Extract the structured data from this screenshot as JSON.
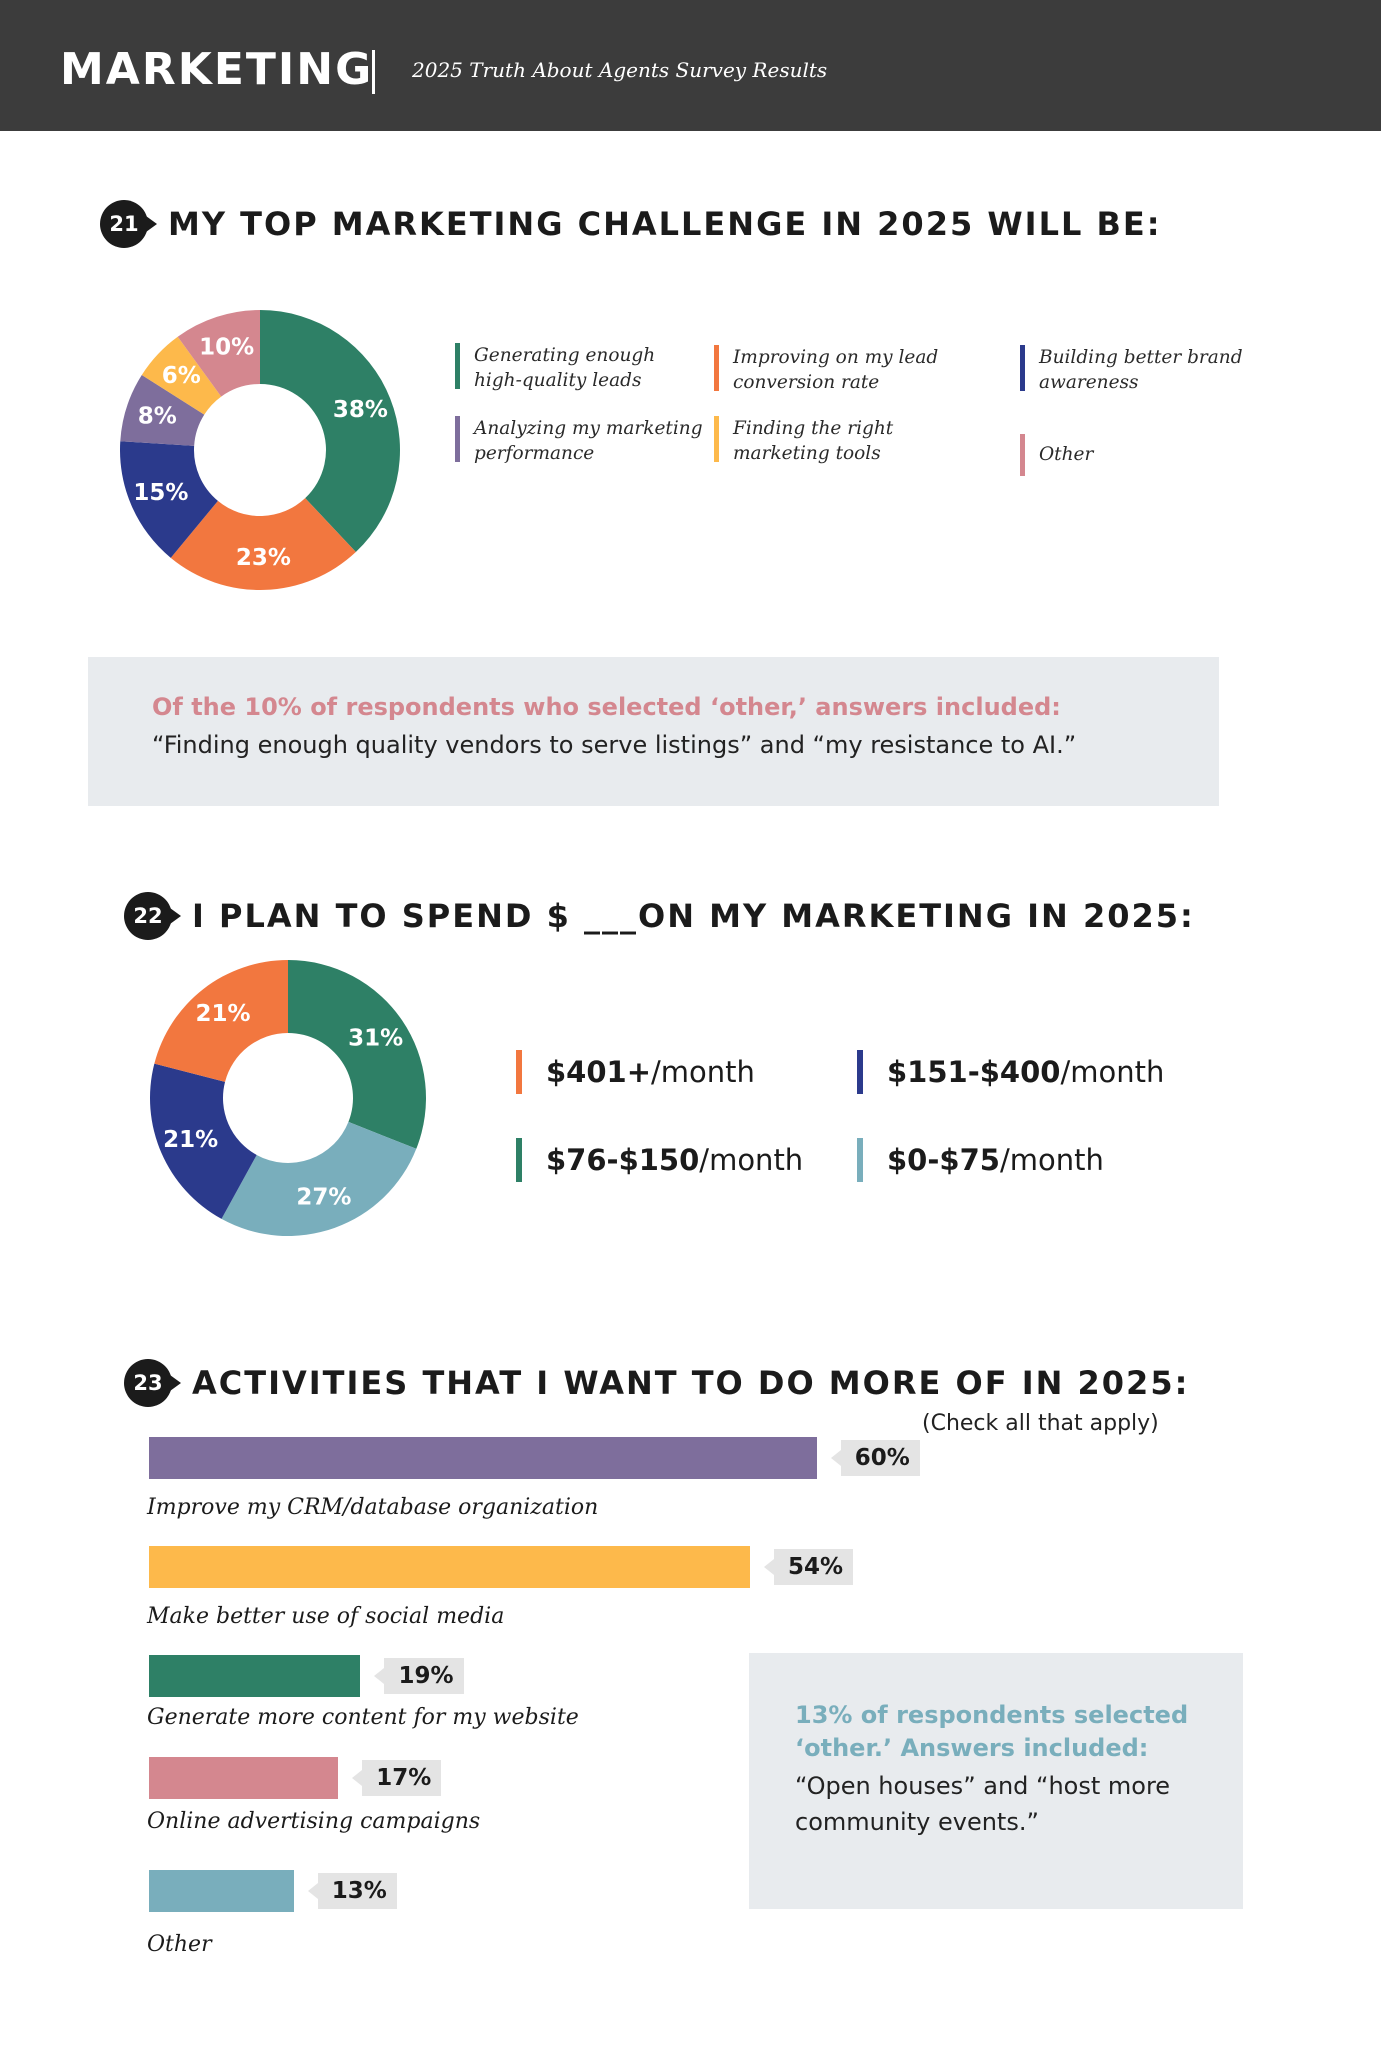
{
  "header": {
    "title": "MARKETING",
    "subtitle": "2025 Truth About Agents Survey Results"
  },
  "q21": {
    "number": "21",
    "title": "MY TOP MARKETING CHALLENGE IN 2025 WILL BE:",
    "note_head": "Of the 10% of respondents who selected ‘other,’ answers included:",
    "note_body": "“Finding enough quality vendors to serve listings” and “my resistance to AI.”"
  },
  "q22": {
    "number": "22",
    "title": "I PLAN TO SPEND $ ___ON MY MARKETING IN 2025:"
  },
  "q23": {
    "number": "23",
    "title": "ACTIVITIES THAT I WANT TO DO MORE OF IN 2025:",
    "subtitle": "(Check all that apply)",
    "note_head": "13% of respondents selected ‘other.’ Answers included:",
    "note_body": "“Open houses” and “host more community events.”"
  },
  "colors": {
    "green": "#2e8066",
    "orange": "#f2773f",
    "navy": "#2b3a8c",
    "purple": "#7e6e9c",
    "yellow": "#fdb94b",
    "pink": "#d4878f",
    "teal": "#79aebc"
  },
  "chart_data": [
    {
      "type": "pie",
      "donut": true,
      "categories": [
        "Generating enough high-quality leads",
        "Improving on my lead conversion rate",
        "Building better brand awareness",
        "Analyzing my marketing performance",
        "Finding the right marketing tools",
        "Other"
      ],
      "values": [
        38,
        23,
        15,
        8,
        6,
        10
      ],
      "labels": [
        "38%",
        "23%",
        "15%",
        "8%",
        "6%",
        "10%"
      ],
      "colors": [
        "#2e8066",
        "#f2773f",
        "#2b3a8c",
        "#7e6e9c",
        "#fdb94b",
        "#d4878f"
      ],
      "legend": [
        {
          "line1": "Generating enough",
          "line2": "high-quality leads",
          "color": "#2e8066"
        },
        {
          "line1": "Improving on my lead",
          "line2": "conversion rate",
          "color": "#f2773f"
        },
        {
          "line1": "Building better brand",
          "line2": "awareness",
          "color": "#2b3a8c"
        },
        {
          "line1": "Analyzing my marketing",
          "line2": "performance",
          "color": "#7e6e9c"
        },
        {
          "line1": "Finding the right",
          "line2": "marketing tools",
          "color": "#fdb94b"
        },
        {
          "line1": "Other",
          "line2": "",
          "color": "#d4878f"
        }
      ]
    },
    {
      "type": "pie",
      "donut": true,
      "categories": [
        "$76-$150/month",
        "$0-$75/month",
        "$151-$400/month",
        "$401+/month"
      ],
      "values": [
        31,
        27,
        21,
        21
      ],
      "labels": [
        "31%",
        "27%",
        "21%",
        "21%"
      ],
      "colors": [
        "#2e8066",
        "#79aebc",
        "#2b3a8c",
        "#f2773f"
      ],
      "legend": [
        {
          "amount": "$401+",
          "unit": "/month",
          "color": "#f2773f"
        },
        {
          "amount": "$151-$400",
          "unit": "/month",
          "color": "#2b3a8c"
        },
        {
          "amount": "$76-$150",
          "unit": "/month",
          "color": "#2e8066"
        },
        {
          "amount": "$0-$75",
          "unit": "/month",
          "color": "#79aebc"
        }
      ]
    },
    {
      "type": "bar",
      "orientation": "horizontal",
      "categories": [
        "Improve my CRM/database organization",
        "Make better use of social media",
        "Generate more content for my website",
        "Online advertising campaigns",
        "Other"
      ],
      "values": [
        60,
        54,
        19,
        17,
        13
      ],
      "labels": [
        "60%",
        "54%",
        "19%",
        "17%",
        "13%"
      ],
      "colors": [
        "#7e6e9c",
        "#fdb94b",
        "#2e8066",
        "#d4878f",
        "#79aebc"
      ]
    }
  ]
}
